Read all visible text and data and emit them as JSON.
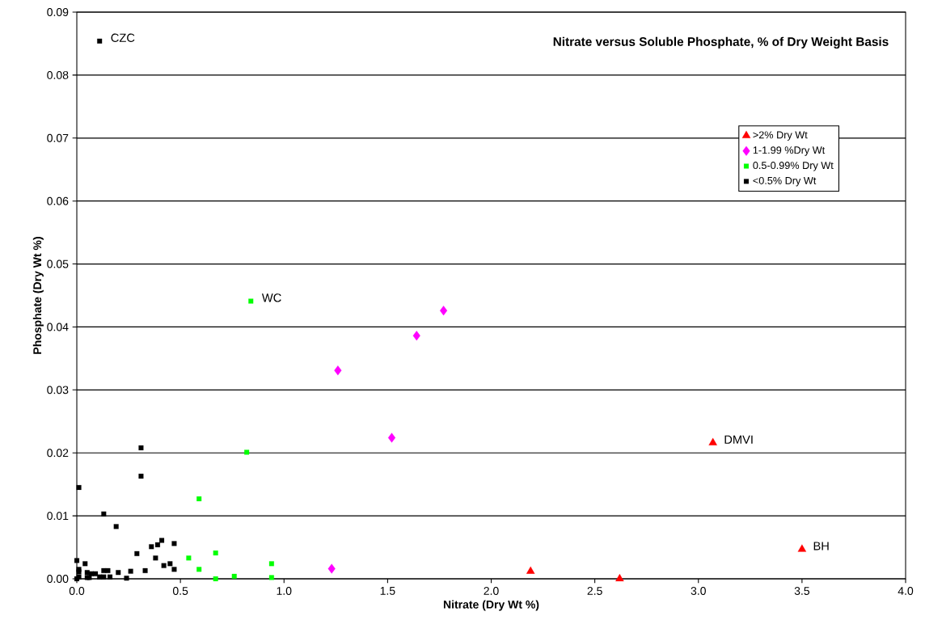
{
  "chart_data": {
    "type": "scatter",
    "title": "Nitrate versus Soluble Phosphate, % of Dry Weight Basis",
    "xlabel": "Nitrate (Dry Wt %)",
    "ylabel": "Phosphate (Dry Wt %)",
    "xlim": [
      0,
      4
    ],
    "ylim": [
      0,
      0.09
    ],
    "xticks": [
      {
        "value": 0,
        "label": "0.0"
      },
      0.5,
      {
        "value": 1,
        "label": "1.0"
      },
      1.5,
      {
        "value": 2,
        "label": "2.0"
      },
      2.5,
      {
        "value": 3,
        "label": "3.0"
      },
      3.5,
      {
        "value": 4,
        "label": "4.0"
      }
    ],
    "yticks": [
      {
        "value": 0,
        "label": "0.00"
      },
      0.01,
      0.02,
      0.03,
      0.04,
      0.05,
      0.06,
      0.07,
      0.08,
      0.09
    ],
    "grid": "y",
    "legend": "top right",
    "series": [
      {
        "name": ">2% Dry Wt",
        "color": "#ff0000",
        "marker": "triangle",
        "x": [
          3.07,
          3.5,
          2.19,
          2.62
        ],
        "values": [
          0.0216,
          0.0047,
          0.0012,
          0.0
        ]
      },
      {
        "name": "1-1.99 %Dry Wt",
        "color": "#ff00ff",
        "marker": "diamond",
        "x": [
          1.77,
          1.64,
          1.26,
          1.52,
          1.23
        ],
        "values": [
          0.0426,
          0.0386,
          0.0331,
          0.0224,
          0.0016
        ]
      },
      {
        "name": "0.5-0.99% Dry Wt",
        "color": "#00ff00",
        "marker": "square",
        "x": [
          0.84,
          0.82,
          0.59,
          0.54,
          0.67,
          0.59,
          0.67,
          0.76,
          0.94,
          0.94
        ],
        "values": [
          0.0441,
          0.0201,
          0.0127,
          0.0033,
          0.0041,
          0.0015,
          0.0,
          0.0004,
          0.0024,
          0.0002
        ]
      },
      {
        "name": "<0.5% Dry Wt",
        "color": "#000000",
        "marker": "square",
        "x": [
          0.11,
          0.31,
          0.31,
          0.01,
          0.13,
          0.19,
          0.29,
          0.36,
          0.39,
          0.41,
          0.47,
          0.38,
          0.42,
          0.45,
          0.47,
          0.33,
          0.26,
          0.24,
          0.2,
          0.16,
          0.13,
          0.15,
          0.0,
          0.04,
          0.01,
          0.01,
          0.05,
          0.07,
          0.09,
          0.01,
          0.05,
          0.06,
          0.11,
          0.13,
          0.0
        ],
        "values": [
          0.0854,
          0.0208,
          0.0163,
          0.0145,
          0.0103,
          0.0083,
          0.004,
          0.0051,
          0.0054,
          0.0061,
          0.0056,
          0.0033,
          0.0021,
          0.0024,
          0.0015,
          0.0013,
          0.0012,
          0.0001,
          0.001,
          0.0003,
          0.0013,
          0.0013,
          0.0029,
          0.0024,
          0.0015,
          0.0011,
          0.001,
          0.0008,
          0.0008,
          0.0003,
          0.0002,
          0.0002,
          0.0003,
          0.0003,
          0.0
        ]
      }
    ],
    "annotations": [
      {
        "text": "CZC",
        "x": 0.11,
        "y": 0.0854
      },
      {
        "text": "WC",
        "x": 0.84,
        "y": 0.0441
      },
      {
        "text": "DMVI",
        "x": 3.07,
        "y": 0.0216
      },
      {
        "text": "BH",
        "x": 3.5,
        "y": 0.0047
      }
    ]
  }
}
